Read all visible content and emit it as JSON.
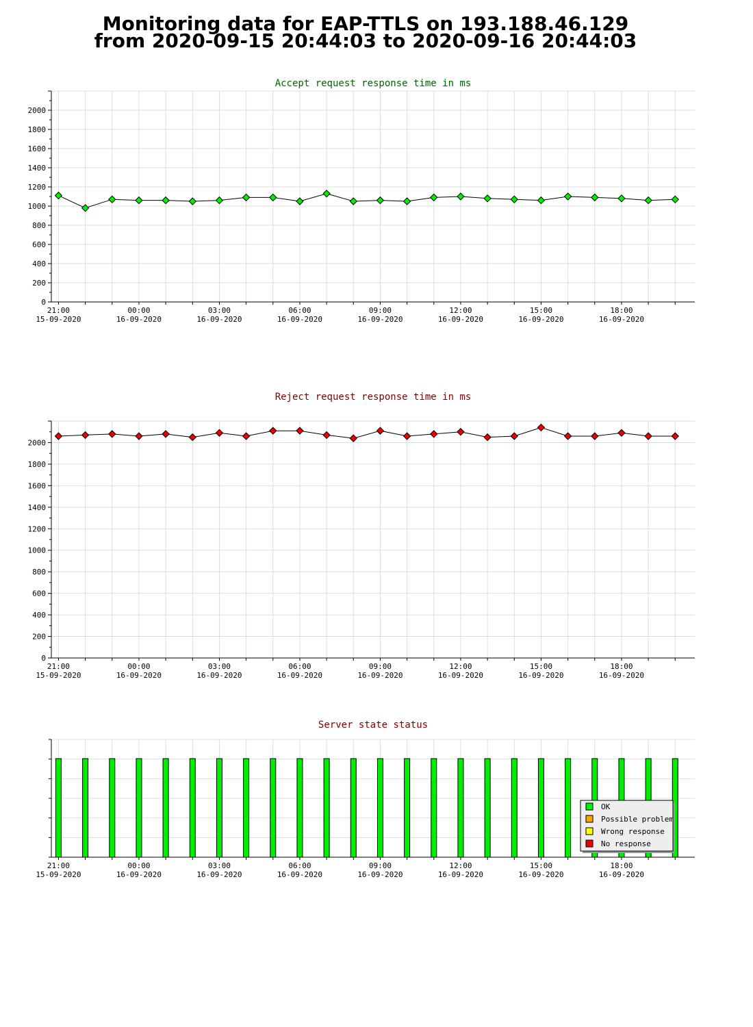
{
  "page": {
    "title_line1": "Monitoring data for EAP-TTLS on 193.188.46.129",
    "title_line2": "from 2020-09-15 20:44:03 to 2020-09-16 20:44:03"
  },
  "x_ticks": [
    {
      "time": "21:00",
      "date": "15-09-2020"
    },
    {
      "time": "00:00",
      "date": "16-09-2020"
    },
    {
      "time": "03:00",
      "date": "16-09-2020"
    },
    {
      "time": "06:00",
      "date": "16-09-2020"
    },
    {
      "time": "09:00",
      "date": "16-09-2020"
    },
    {
      "time": "12:00",
      "date": "16-09-2020"
    },
    {
      "time": "15:00",
      "date": "16-09-2020"
    },
    {
      "time": "18:00",
      "date": "16-09-2020"
    }
  ],
  "colors": {
    "grid": "#dddddd",
    "accept_title": "#006400",
    "reject_title": "#800000",
    "status_title": "#800000",
    "ok": "#00ee00",
    "possible_problem": "#ffa500",
    "wrong_response": "#ffff00",
    "no_response": "#ee0000"
  },
  "chart_data": [
    {
      "id": "accept",
      "type": "line",
      "title": "Accept request response time in ms",
      "x_range": [
        "2020-09-15 20:44",
        "2020-09-16 20:44"
      ],
      "ylim": [
        0,
        2200
      ],
      "yticks": [
        0,
        200,
        400,
        600,
        800,
        1000,
        1200,
        1400,
        1600,
        1800,
        2000
      ],
      "grid": true,
      "marker_color": "#00ee00",
      "series": [
        {
          "x": [
            "2020-09-15 21:00",
            "2020-09-15 22:00",
            "2020-09-15 23:00",
            "2020-09-16 00:00",
            "2020-09-16 01:00",
            "2020-09-16 02:00",
            "2020-09-16 03:00",
            "2020-09-16 04:00",
            "2020-09-16 05:00",
            "2020-09-16 06:00",
            "2020-09-16 07:00",
            "2020-09-16 08:00",
            "2020-09-16 09:00",
            "2020-09-16 10:00",
            "2020-09-16 11:00",
            "2020-09-16 12:00",
            "2020-09-16 13:00",
            "2020-09-16 14:00",
            "2020-09-16 15:00",
            "2020-09-16 16:00",
            "2020-09-16 17:00",
            "2020-09-16 18:00",
            "2020-09-16 19:00",
            "2020-09-16 20:00"
          ],
          "values": [
            1110,
            980,
            1070,
            1060,
            1060,
            1050,
            1060,
            1090,
            1090,
            1050,
            1130,
            1050,
            1060,
            1050,
            1090,
            1100,
            1080,
            1070,
            1060,
            1100,
            1090,
            1080,
            1060,
            1070
          ]
        }
      ]
    },
    {
      "id": "reject",
      "type": "line",
      "title": "Reject request response time in ms",
      "x_range": [
        "2020-09-15 20:44",
        "2020-09-16 20:44"
      ],
      "ylim": [
        0,
        2200
      ],
      "yticks": [
        0,
        200,
        400,
        600,
        800,
        1000,
        1200,
        1400,
        1600,
        1800,
        2000
      ],
      "grid": true,
      "marker_color": "#ee0000",
      "series": [
        {
          "x": [
            "2020-09-15 21:00",
            "2020-09-15 22:00",
            "2020-09-15 23:00",
            "2020-09-16 00:00",
            "2020-09-16 01:00",
            "2020-09-16 02:00",
            "2020-09-16 03:00",
            "2020-09-16 04:00",
            "2020-09-16 05:00",
            "2020-09-16 06:00",
            "2020-09-16 07:00",
            "2020-09-16 08:00",
            "2020-09-16 09:00",
            "2020-09-16 10:00",
            "2020-09-16 11:00",
            "2020-09-16 12:00",
            "2020-09-16 13:00",
            "2020-09-16 14:00",
            "2020-09-16 15:00",
            "2020-09-16 16:00",
            "2020-09-16 17:00",
            "2020-09-16 18:00",
            "2020-09-16 19:00",
            "2020-09-16 20:00"
          ],
          "values": [
            2060,
            2070,
            2080,
            2060,
            2080,
            2050,
            2090,
            2060,
            2110,
            2110,
            2070,
            2040,
            2110,
            2060,
            2080,
            2100,
            2050,
            2060,
            2140,
            2060,
            2060,
            2090,
            2060,
            2060
          ]
        }
      ]
    },
    {
      "id": "status",
      "type": "bar",
      "title": "Server state status",
      "x_range": [
        "2020-09-15 20:44",
        "2020-09-16 20:44"
      ],
      "grid": true,
      "legend_position": "bottom-right",
      "legend": [
        {
          "label": "OK",
          "color": "#00ee00"
        },
        {
          "label": "Possible problem",
          "color": "#ffa500"
        },
        {
          "label": "Wrong response",
          "color": "#ffff00"
        },
        {
          "label": "No response",
          "color": "#ee0000"
        }
      ],
      "series": [
        {
          "name": "OK",
          "x": [
            "2020-09-15 21:00",
            "2020-09-15 22:00",
            "2020-09-15 23:00",
            "2020-09-16 00:00",
            "2020-09-16 01:00",
            "2020-09-16 02:00",
            "2020-09-16 03:00",
            "2020-09-16 04:00",
            "2020-09-16 05:00",
            "2020-09-16 06:00",
            "2020-09-16 07:00",
            "2020-09-16 08:00",
            "2020-09-16 09:00",
            "2020-09-16 10:00",
            "2020-09-16 11:00",
            "2020-09-16 12:00",
            "2020-09-16 13:00",
            "2020-09-16 14:00",
            "2020-09-16 15:00",
            "2020-09-16 16:00",
            "2020-09-16 17:00",
            "2020-09-16 18:00",
            "2020-09-16 19:00",
            "2020-09-16 20:00"
          ],
          "values": [
            1,
            1,
            1,
            1,
            1,
            1,
            1,
            1,
            1,
            1,
            1,
            1,
            1,
            1,
            1,
            1,
            1,
            1,
            1,
            1,
            1,
            1,
            1,
            1
          ]
        }
      ]
    }
  ]
}
